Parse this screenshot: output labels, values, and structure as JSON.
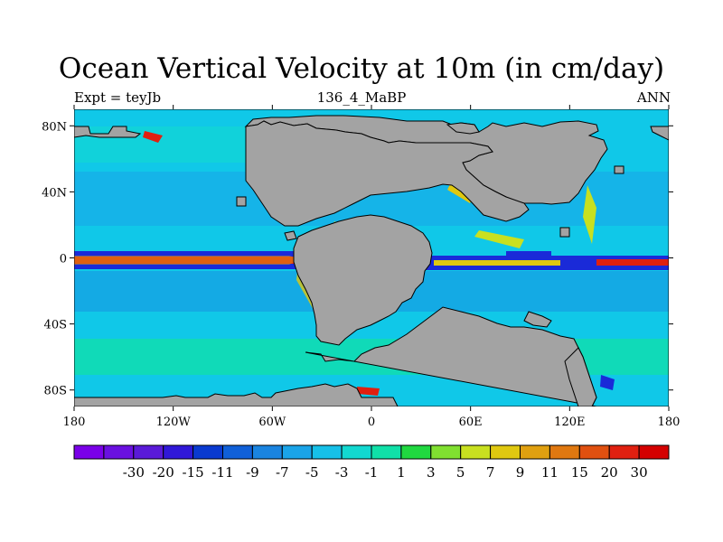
{
  "title": "Ocean Vertical Velocity at 10m (in cm/day)",
  "left_string": "Expt = teyJb",
  "center_string": "136_4_MaBP",
  "right_string": "ANN",
  "lat_ticks": [
    {
      "value": 80,
      "label": "80N"
    },
    {
      "value": 40,
      "label": "40N"
    },
    {
      "value": 0,
      "label": "0"
    },
    {
      "value": -40,
      "label": "40S"
    },
    {
      "value": -80,
      "label": "80S"
    }
  ],
  "lon_ticks": [
    {
      "value": -180,
      "label": "180"
    },
    {
      "value": -120,
      "label": "120W"
    },
    {
      "value": -60,
      "label": "60W"
    },
    {
      "value": 0,
      "label": "0"
    },
    {
      "value": 60,
      "label": "60E"
    },
    {
      "value": 120,
      "label": "120E"
    },
    {
      "value": 180,
      "label": "180"
    }
  ],
  "colorbar": {
    "colors": [
      "#7a00e8",
      "#6a10e0",
      "#5a1ad8",
      "#3018d8",
      "#0a3ad0",
      "#1060d8",
      "#1a84e0",
      "#1aa4e8",
      "#16c0e8",
      "#12d8d0",
      "#10e0a8",
      "#20d840",
      "#80e030",
      "#c8e020",
      "#e0c810",
      "#e0a010",
      "#e07810",
      "#e05010",
      "#e02010",
      "#d40000"
    ],
    "labels": [
      "-30",
      "-20",
      "-15",
      "-11",
      "-9",
      "-7",
      "-5",
      "-3",
      "-1",
      "1",
      "3",
      "5",
      "7",
      "9",
      "11",
      "15",
      "20",
      "30"
    ]
  },
  "colors": {
    "land": "#a3a3a3",
    "ocean_background": "#10c8e8",
    "equatorial_upwelling": "#e02010",
    "equatorial_flank": "#1a2ad8"
  }
}
